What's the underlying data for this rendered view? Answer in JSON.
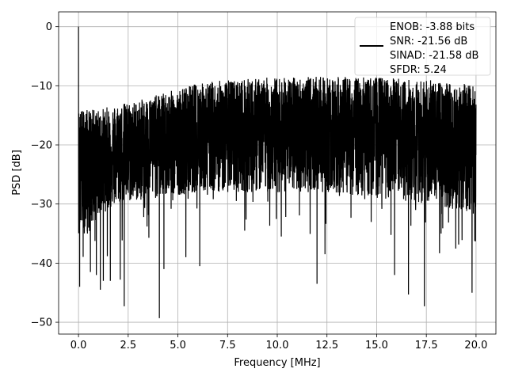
{
  "chart_data": {
    "type": "line",
    "xlabel": "Frequency [MHz]",
    "ylabel": "PSD [dB]",
    "xlim": [
      -1.0,
      21.0
    ],
    "ylim": [
      -52.0,
      2.5
    ],
    "x_ticks": [
      0.0,
      2.5,
      5.0,
      7.5,
      10.0,
      12.5,
      15.0,
      17.5,
      20.0
    ],
    "x_tick_labels": [
      "0.0",
      "2.5",
      "5.0",
      "7.5",
      "10.0",
      "12.5",
      "15.0",
      "17.5",
      "20.0"
    ],
    "y_ticks": [
      0,
      -10,
      -20,
      -30,
      -40,
      -50
    ],
    "y_tick_labels": [
      "0",
      "−10",
      "−20",
      "−30",
      "−40",
      "−50"
    ],
    "grid": true,
    "legend_position": "top-right",
    "line_color": "#000000",
    "series": [
      {
        "label_lines": [
          "ENOB: -3.88 bits",
          "SNR: -21.56 dB",
          "SINAD: -21.58 dB",
          "SFDR: 5.24"
        ],
        "x_range": [
          0.0,
          20.0
        ],
        "num_points": 4096,
        "peak": [
          0.0,
          0.0
        ],
        "notable_points": [
          [
            0.06,
            -44.0
          ],
          [
            0.25,
            -34.0
          ],
          [
            0.45,
            -35.0
          ],
          [
            0.6,
            -41.5
          ],
          [
            0.9,
            -42.0
          ],
          [
            1.1,
            -44.5
          ],
          [
            1.25,
            -43.0
          ],
          [
            1.6,
            -43.0
          ],
          [
            2.1,
            -42.8
          ],
          [
            2.3,
            -47.3
          ],
          [
            4.07,
            -49.3
          ],
          [
            4.3,
            -41.0
          ],
          [
            5.4,
            -39.0
          ],
          [
            6.1,
            -40.5
          ],
          [
            12.0,
            -43.5
          ],
          [
            12.4,
            -38.5
          ],
          [
            15.9,
            -42.0
          ],
          [
            16.6,
            -45.3
          ],
          [
            17.4,
            -47.3
          ],
          [
            19.8,
            -45.0
          ]
        ],
        "noise_envelope": {
          "x": [
            0.0,
            0.5,
            1.0,
            2.0,
            3.0,
            4.0,
            5.0,
            6.0,
            7.5,
            10.0,
            12.5,
            15.0,
            17.5,
            19.0,
            20.0
          ],
          "upper": [
            -14,
            -14,
            -14,
            -13,
            -12.5,
            -11.5,
            -10.5,
            -9.5,
            -9,
            -8.5,
            -8.5,
            -8.5,
            -9,
            -9.5,
            -10
          ],
          "lower": [
            -35,
            -35,
            -32,
            -30,
            -29.5,
            -29,
            -28.5,
            -28,
            -28,
            -28,
            -28,
            -29,
            -30,
            -31,
            -32
          ],
          "mean": [
            -20,
            -21,
            -22,
            -21,
            -20,
            -19,
            -18.5,
            -18,
            -17.5,
            -17,
            -17,
            -17.5,
            -18,
            -19,
            -20
          ]
        }
      }
    ]
  }
}
